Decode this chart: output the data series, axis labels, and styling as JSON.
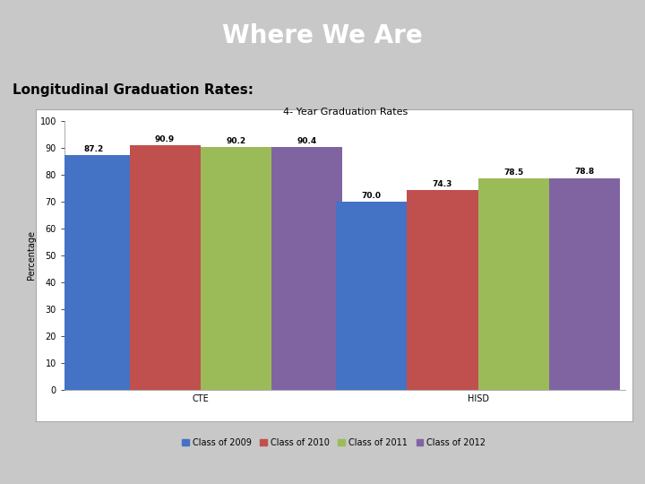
{
  "title": "Where We Are",
  "subtitle": "Longitudinal Graduation Rates:",
  "chart_title": "4- Year Graduation Rates",
  "groups": [
    "CTE",
    "HISD"
  ],
  "series": [
    "Class of 2009",
    "Class of 2010",
    "Class of 2011",
    "Class of 2012"
  ],
  "values": {
    "CTE": [
      87.2,
      90.9,
      90.2,
      90.4
    ],
    "HISD": [
      70.0,
      74.3,
      78.5,
      78.8
    ]
  },
  "bar_colors": [
    "#4472C4",
    "#C0504D",
    "#9BBB59",
    "#8064A2"
  ],
  "ylabel": "Percentage",
  "ylim": [
    0,
    100
  ],
  "yticks": [
    0,
    10,
    20,
    30,
    40,
    50,
    60,
    70,
    80,
    90,
    100
  ],
  "header_bg": "#1F3864",
  "header_text": "#FFFFFF",
  "body_bg": "#C8C8C8",
  "chart_bg": "#FFFFFF",
  "subtitle_color": "#000000",
  "title_fontsize": 20,
  "subtitle_fontsize": 11,
  "chart_title_fontsize": 8,
  "ylabel_fontsize": 7,
  "tick_fontsize": 7,
  "label_fontsize": 6.5,
  "legend_fontsize": 7,
  "bar_width": 0.12,
  "group_centers": [
    0.28,
    0.75
  ]
}
